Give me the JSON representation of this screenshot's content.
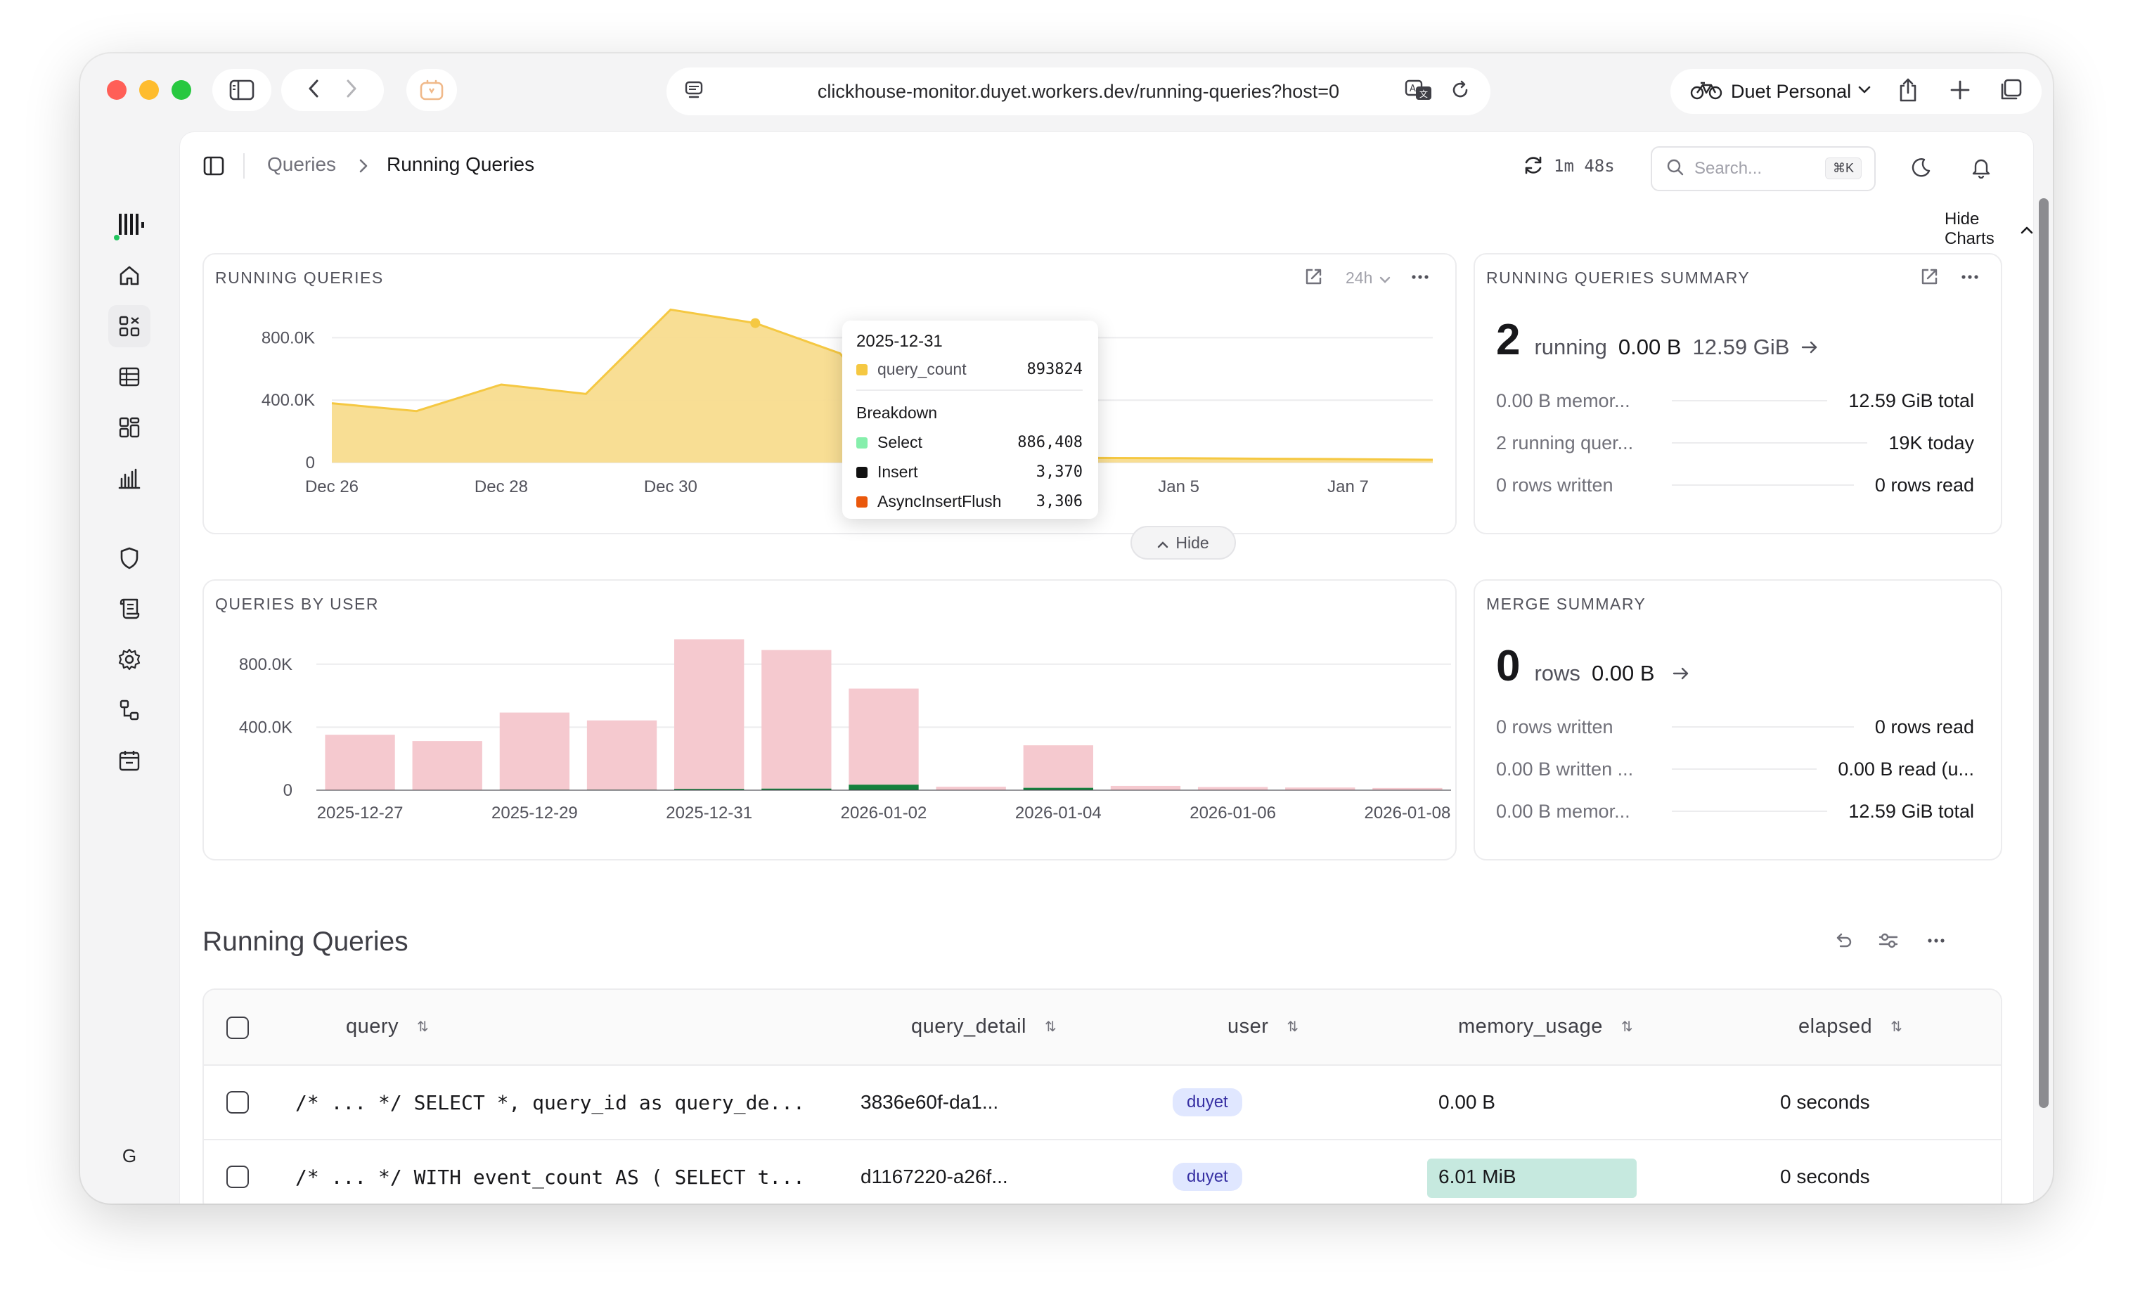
{
  "browser": {
    "url": "clickhouse-monitor.duyet.workers.dev/running-queries?host=0",
    "profile": "Duet Personal"
  },
  "rail": {
    "avatar": "G",
    "items": [
      {
        "icon": "home-icon"
      },
      {
        "icon": "queries-icon"
      },
      {
        "icon": "tables-icon"
      },
      {
        "icon": "dashboards-icon"
      },
      {
        "icon": "metrics-icon"
      },
      {
        "icon": "security-icon"
      },
      {
        "icon": "logs-icon"
      },
      {
        "icon": "settings-icon"
      },
      {
        "icon": "cluster-icon"
      },
      {
        "icon": "archive-icon"
      }
    ]
  },
  "header": {
    "breadcrumb_parent": "Queries",
    "breadcrumb_current": "Running Queries",
    "refresh_timer": "1m 48s",
    "search_placeholder": "Search...",
    "search_shortcut": "⌘K",
    "hide_charts": "Hide Charts"
  },
  "running_chart": {
    "title": "RUNNING QUERIES",
    "range": "24h",
    "tooltip": {
      "date": "2025-12-31",
      "metric": "query_count",
      "metric_value": "893824",
      "breakdown_title": "Breakdown",
      "items": [
        {
          "name": "Select",
          "value": "886,408",
          "color": "#86efac"
        },
        {
          "name": "Insert",
          "value": "3,370",
          "color": "#111111"
        },
        {
          "name": "AsyncInsertFlush",
          "value": "3,306",
          "color": "#ea580c"
        }
      ]
    },
    "hide_label": "Hide"
  },
  "user_chart": {
    "title": "QUERIES BY USER"
  },
  "chart_data": [
    {
      "type": "area",
      "title": "RUNNING QUERIES",
      "x_ticks": [
        "Dec 26",
        "Dec 28",
        "Dec 30",
        "Jan 5",
        "Jan 7"
      ],
      "y_ticks": [
        "0",
        "400.0K",
        "800.0K"
      ],
      "ylim": [
        0,
        1000000
      ],
      "x": [
        "2025-12-26",
        "2025-12-27",
        "2025-12-28",
        "2025-12-29",
        "2025-12-30",
        "2025-12-31",
        "2026-01-01",
        "2026-01-02",
        "2026-01-03",
        "2026-01-04",
        "2026-01-05",
        "2026-01-06",
        "2026-01-07",
        "2026-01-08"
      ],
      "series": [
        {
          "name": "query_count",
          "color": "#f5c842",
          "values": [
            380000,
            330000,
            500000,
            440000,
            980000,
            893824,
            700000,
            40000,
            35000,
            30000,
            28000,
            25000,
            22000,
            18000
          ]
        }
      ],
      "grid": true
    },
    {
      "type": "bar",
      "title": "QUERIES BY USER",
      "categories": [
        "2025-12-27",
        "2025-12-28",
        "2025-12-29",
        "2025-12-30",
        "2025-12-31",
        "2026-01-01",
        "2026-01-02",
        "2026-01-03",
        "2026-01-04",
        "2026-01-05",
        "2026-01-06",
        "2026-01-07",
        "2026-01-08"
      ],
      "x_ticks": [
        "2025-12-27",
        "2025-12-29",
        "2025-12-31",
        "2026-01-02",
        "2026-01-04",
        "2026-01-06",
        "2026-01-08"
      ],
      "y_ticks": [
        "0",
        "400.0K",
        "800.0K"
      ],
      "ylim": [
        0,
        1000000
      ],
      "series": [
        {
          "name": "",
          "color": "#f5c9cf",
          "values": [
            350000,
            310000,
            490000,
            440000,
            950000,
            880000,
            610000,
            20000,
            270000,
            25000,
            18000,
            15000,
            12000
          ]
        },
        {
          "name": "",
          "color": "#15803d",
          "values": [
            2000,
            2000,
            3000,
            3000,
            8000,
            10000,
            35000,
            2000,
            15000,
            2000,
            2000,
            2000,
            2000
          ]
        }
      ],
      "grid": true
    }
  ],
  "summary": {
    "title": "RUNNING QUERIES SUMMARY",
    "count": "2",
    "count_label": "running",
    "memory": "0.00 B",
    "total": "12.59 GiB",
    "rows": [
      {
        "left": "0.00 B memor...",
        "right": "12.59 GiB total"
      },
      {
        "left": "2 running quer...",
        "right": "19K today"
      },
      {
        "left": "0 rows written",
        "right": "0 rows read"
      }
    ]
  },
  "merge": {
    "title": "MERGE SUMMARY",
    "count": "0",
    "count_label": "rows",
    "bytes": "0.00 B",
    "rows": [
      {
        "left": "0 rows written",
        "right": "0 rows read"
      },
      {
        "left": "0.00 B written ...",
        "right": "0.00 B read (u..."
      },
      {
        "left": "0.00 B memor...",
        "right": "12.59 GiB total"
      }
    ]
  },
  "table": {
    "title": "Running Queries",
    "columns": [
      "query",
      "query_detail",
      "user",
      "memory_usage",
      "elapsed"
    ],
    "rows": [
      {
        "query": "/* ... */ SELECT *, query_id as query_de...",
        "detail": "3836e60f-da1...",
        "user": "duyet",
        "memory": "0.00 B",
        "memory_fraction": 0,
        "elapsed": "0 seconds"
      },
      {
        "query": "/* ... */ WITH event_count AS ( SELECT t...",
        "detail": "d1167220-a26f...",
        "user": "duyet",
        "memory": "6.01 MiB",
        "memory_fraction": 1,
        "elapsed": "0 seconds"
      }
    ]
  }
}
